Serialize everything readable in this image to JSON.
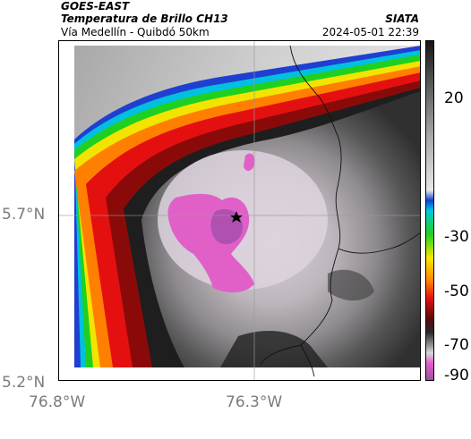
{
  "header": {
    "satellite": "GOES-EAST",
    "product": "Temperatura de Brillo CH13",
    "region": "Vía Medellín - Quibdó 50km",
    "agency": "SIATA",
    "datetime": "2024-05-01 22:39"
  },
  "axes": {
    "x_ticks": [
      "76.8°W",
      "76.3°W"
    ],
    "y_ticks": [
      "5.7°N",
      "5.2°N"
    ]
  },
  "colorbar": {
    "ticks": [
      "20",
      "-30",
      "-50",
      "-70",
      "-90"
    ],
    "range": [
      -95,
      40
    ],
    "colors": {
      "magenta": "#e060c8",
      "purple": "#a050a0",
      "dark_gray": "#2a2a2a",
      "light_gray": "#d8d8d8",
      "red": "#e01010",
      "orange": "#ff8000",
      "yellow": "#f8e800",
      "green": "#20d020",
      "cyan": "#00c8e0",
      "blue": "#1040d0"
    }
  },
  "marker": {
    "icon": "star-icon"
  }
}
